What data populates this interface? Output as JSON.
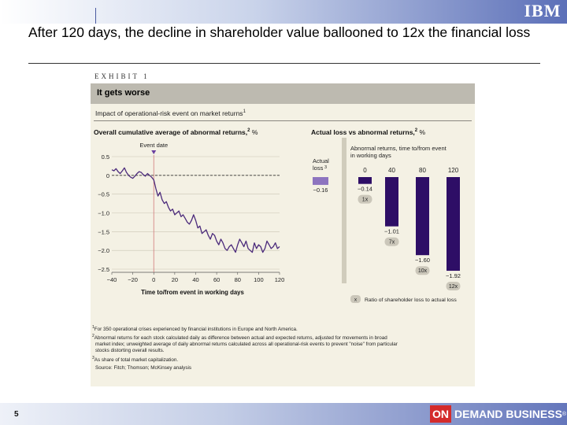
{
  "slide": {
    "title": "After 120 days, the decline in shareholder value ballooned to 12x the financial loss",
    "page_number": "5",
    "brand_logo": "IBM",
    "footer_on": "ON",
    "footer_brand": "DEMAND BUSINESS",
    "footer_tm": "®"
  },
  "exhibit": {
    "label": "EXHIBIT 1",
    "title": "It gets worse",
    "subtitle": "Impact of operational-risk event on market returns",
    "subtitle_note": "1"
  },
  "chart_data": [
    {
      "type": "line",
      "title": "Overall cumulative average of abnormal returns,",
      "title_note": "2",
      "unit": "%",
      "xlabel": "Time to/from event in working days",
      "ylabel": "",
      "xlim": [
        -40,
        120
      ],
      "ylim": [
        -2.5,
        0.5
      ],
      "xticks": [
        -40,
        -20,
        0,
        20,
        40,
        60,
        80,
        100,
        120
      ],
      "xtick_labels": [
        "−40",
        "−20",
        "0",
        "20",
        "40",
        "60",
        "80",
        "100",
        "120"
      ],
      "yticks": [
        0.5,
        0,
        -0.5,
        -1.0,
        -1.5,
        -2.0,
        -2.5
      ],
      "ytick_labels": [
        "0.5",
        "0",
        "−0.5",
        "−1.0",
        "−1.5",
        "−2.0",
        "−2.5"
      ],
      "event_label": "Event date",
      "event_x": 0,
      "color": "#4b2a7b",
      "x": [
        -40,
        -38,
        -36,
        -34,
        -32,
        -30,
        -28,
        -26,
        -24,
        -22,
        -20,
        -18,
        -16,
        -14,
        -12,
        -10,
        -8,
        -6,
        -4,
        -2,
        0,
        2,
        4,
        6,
        8,
        10,
        12,
        14,
        16,
        18,
        20,
        22,
        24,
        26,
        28,
        30,
        32,
        34,
        36,
        38,
        40,
        42,
        44,
        46,
        48,
        50,
        52,
        54,
        56,
        58,
        60,
        62,
        64,
        66,
        68,
        70,
        72,
        74,
        76,
        78,
        80,
        82,
        84,
        86,
        88,
        90,
        92,
        94,
        96,
        98,
        100,
        102,
        104,
        106,
        108,
        110,
        112,
        114,
        116,
        118,
        120
      ],
      "y": [
        0.15,
        0.12,
        0.18,
        0.1,
        0.05,
        0.12,
        0.2,
        0.08,
        0.0,
        -0.05,
        -0.08,
        -0.02,
        0.05,
        0.1,
        0.08,
        0.02,
        -0.02,
        0.05,
        0.0,
        -0.05,
        -0.12,
        -0.35,
        -0.55,
        -0.45,
        -0.65,
        -0.75,
        -0.7,
        -0.85,
        -0.95,
        -0.9,
        -1.05,
        -1.0,
        -0.95,
        -1.1,
        -1.05,
        -1.15,
        -1.25,
        -1.3,
        -1.2,
        -1.05,
        -1.2,
        -1.4,
        -1.35,
        -1.55,
        -1.5,
        -1.45,
        -1.6,
        -1.7,
        -1.55,
        -1.6,
        -1.75,
        -1.85,
        -1.7,
        -1.8,
        -1.95,
        -2.0,
        -1.9,
        -1.85,
        -1.95,
        -2.05,
        -1.85,
        -1.7,
        -1.8,
        -1.9,
        -1.75,
        -1.95,
        -2.0,
        -2.05,
        -1.8,
        -1.95,
        -1.85,
        -1.9,
        -2.05,
        -1.95,
        -1.75,
        -1.85,
        -1.95,
        -1.9,
        -1.8,
        -1.95,
        -1.9
      ]
    },
    {
      "type": "bar",
      "title": "Actual loss vs abnormal returns,",
      "title_note": "2",
      "unit": "%",
      "series_note": "Abnormal returns, time to/from event in working days",
      "actual_label": "Actual loss",
      "actual_note": "3",
      "categories": [
        "Actual loss",
        "0",
        "40",
        "80",
        "120"
      ],
      "values": [
        -0.16,
        -0.14,
        -1.01,
        -1.6,
        -1.92
      ],
      "value_labels": [
        "−0.16",
        "−0.14",
        "−1.01",
        "−1.60",
        "−1.92"
      ],
      "ratios": [
        "",
        "1x",
        "7x",
        "10x",
        "12x"
      ],
      "colors": [
        "#8d74bf",
        "#2e0e66",
        "#2e0e66",
        "#2e0e66",
        "#2e0e66"
      ],
      "ylim": [
        -2.0,
        0
      ],
      "legend_key": "x",
      "legend_text": "Ratio of shareholder loss to actual loss"
    }
  ],
  "notes": {
    "n1": "For 350 operational crises experienced by financial institutions in Europe and North America.",
    "n2a": "Abnormal returns for each stock calculated daily as difference between actual and expected returns, adjusted for movements in broad",
    "n2b": "market index; unweighted average of daily abnormal returns calculated across all operational-risk events to prevent \"noise\" from particular",
    "n2c": "stocks distorting overall results.",
    "n3": "As share of total market capitalization.",
    "source": "Source: Fitch; Thomson; McKinsey analysis"
  }
}
